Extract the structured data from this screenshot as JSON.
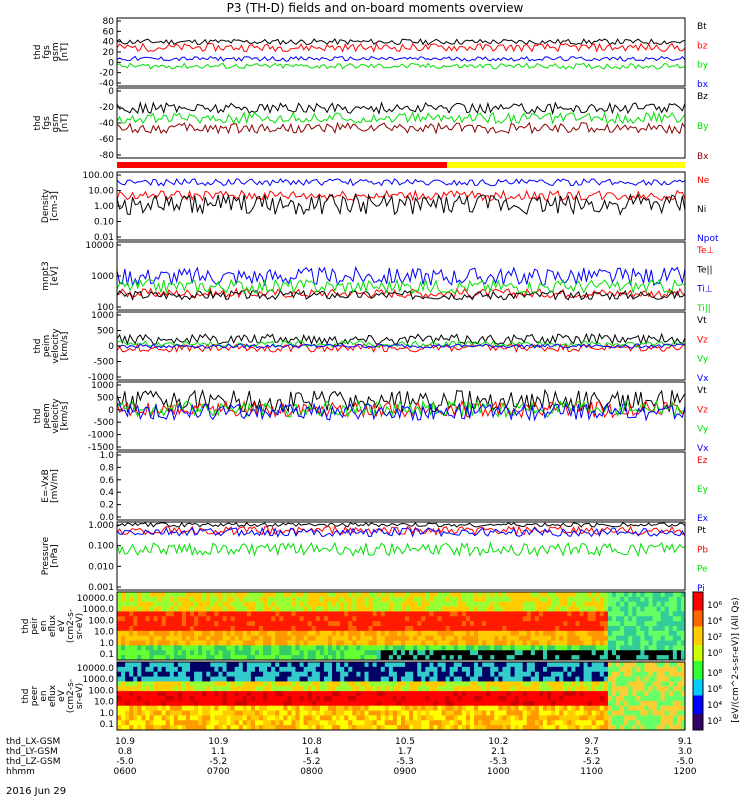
{
  "title": "P3 (TH-D) fields and on-board moments overview",
  "date_label": "2016 Jun 29",
  "colors": {
    "black": "#000000",
    "red": "#ff0000",
    "green": "#00e000",
    "blue": "#0000ff",
    "darkred": "#8b0000",
    "yellow": "#ffff00",
    "gray": "#888888"
  },
  "time_axis": {
    "range": [
      "0600",
      "1200"
    ],
    "rows": [
      {
        "label": "thd_LX-GSM",
        "values": [
          "10.9",
          "10.9",
          "10.8",
          "10.5",
          "10.2",
          "9.7",
          "9.1"
        ]
      },
      {
        "label": "thd_LY-GSM",
        "values": [
          "0.8",
          "1.1",
          "1.4",
          "1.7",
          "2.1",
          "2.5",
          "3.0"
        ]
      },
      {
        "label": "thd_LZ-GSM",
        "values": [
          "-5.0",
          "-5.2",
          "-5.2",
          "-5.3",
          "-5.3",
          "-5.2",
          "-5.0"
        ]
      },
      {
        "label": "hhmm",
        "values": [
          "0600",
          "0700",
          "0800",
          "0900",
          "1000",
          "1100",
          "1200"
        ]
      }
    ]
  },
  "chart_data": [
    {
      "id": "fgs-gsm",
      "type": "line",
      "ylabel": [
        "thd",
        "fgs",
        "gsm",
        "[nT]"
      ],
      "ylim": [
        -40,
        80
      ],
      "yticks": [
        "80",
        "60",
        "40",
        "20",
        "0",
        "-20",
        "-40"
      ],
      "series": [
        {
          "name": "Bt",
          "color": "black",
          "base": 38,
          "noise": 5
        },
        {
          "name": "bz",
          "color": "red",
          "base": 28,
          "noise": 7
        },
        {
          "name": "by",
          "color": "green",
          "base": -5,
          "noise": 5
        },
        {
          "name": "bx",
          "color": "blue",
          "base": 8,
          "noise": 4
        }
      ]
    },
    {
      "id": "fgs-gsm-2",
      "type": "line",
      "ylabel": [
        "thd",
        "fgs",
        "gsm",
        "[nT]"
      ],
      "ylim": [
        -90,
        15
      ],
      "yticks": [
        "0",
        "-20",
        "-40",
        "-60",
        "-80"
      ],
      "series": [
        {
          "name": "Bz",
          "color": "black",
          "base": -15,
          "noise": 8
        },
        {
          "name": "By",
          "color": "green",
          "base": -30,
          "noise": 8
        },
        {
          "name": "Bx",
          "color": "darkred",
          "base": -45,
          "noise": 8
        }
      ]
    },
    {
      "id": "density",
      "type": "line",
      "log": true,
      "ylabel": [
        "Density",
        "[cm-3]"
      ],
      "ylim": [
        0.01,
        100
      ],
      "yticks": [
        "100.00",
        "10.00",
        "1.00",
        "0.10",
        "0.01"
      ],
      "series": [
        {
          "name": "Ne",
          "color": "red",
          "base": 4,
          "noise": 0.3
        },
        {
          "name": "Ni",
          "color": "black",
          "base": 1.2,
          "noise": 0.6
        },
        {
          "name": "Npot",
          "color": "blue",
          "base": 25,
          "noise": 0.2
        }
      ]
    },
    {
      "id": "temperature",
      "type": "line",
      "log": true,
      "ylabel": [
        "mnpt3",
        "[eV]"
      ],
      "ylim": [
        10,
        10000
      ],
      "yticks": [
        "10000",
        "1000",
        "100"
      ],
      "series": [
        {
          "name": "Te⊥",
          "color": "red",
          "base": 55,
          "noise": 0.2
        },
        {
          "name": "Te||",
          "color": "black",
          "base": 45,
          "noise": 0.2
        },
        {
          "name": "Ti⊥",
          "color": "blue",
          "base": 300,
          "noise": 0.4
        },
        {
          "name": "Ti||",
          "color": "green",
          "base": 110,
          "noise": 0.3
        }
      ]
    },
    {
      "id": "peim-velocity",
      "type": "line",
      "ylabel": [
        "thd",
        "peim",
        "velocity",
        "[km/s]"
      ],
      "ylim": [
        -1000,
        1000
      ],
      "yticks": [
        "1000",
        "500",
        "0",
        "-500",
        "-1000"
      ],
      "series": [
        {
          "name": "Vt",
          "color": "black",
          "base": 200,
          "noise": 150
        },
        {
          "name": "Vz",
          "color": "red",
          "base": -60,
          "noise": 120
        },
        {
          "name": "Vy",
          "color": "green",
          "base": 60,
          "noise": 90
        },
        {
          "name": "Vx",
          "color": "blue",
          "base": 0,
          "noise": 60
        }
      ]
    },
    {
      "id": "peem-velocity",
      "type": "line",
      "ylabel": [
        "thd",
        "peem",
        "velocity",
        "[km/s]"
      ],
      "ylim": [
        -1500,
        1000
      ],
      "yticks": [
        "1000",
        "500",
        "0",
        "-500",
        "-1000",
        "-1500"
      ],
      "series": [
        {
          "name": "Vt",
          "color": "black",
          "base": 300,
          "noise": 400
        },
        {
          "name": "Vz",
          "color": "red",
          "base": 0,
          "noise": 300
        },
        {
          "name": "Vy",
          "color": "green",
          "base": 0,
          "noise": 300
        },
        {
          "name": "Vx",
          "color": "blue",
          "base": -100,
          "noise": 300
        }
      ]
    },
    {
      "id": "efield",
      "type": "line",
      "ylabel": [
        "E=-VxB",
        "[mV/m]"
      ],
      "ylim": [
        0,
        1
      ],
      "yticks": [
        "1.0",
        "0.8",
        "0.6",
        "0.4",
        "0.2",
        "0.0"
      ],
      "series": [
        {
          "name": "Ez",
          "color": "red"
        },
        {
          "name": "Ey",
          "color": "green"
        },
        {
          "name": "Ex",
          "color": "blue"
        }
      ]
    },
    {
      "id": "pressure",
      "type": "line",
      "log": true,
      "ylabel": [
        "Pressure",
        "[nPa]"
      ],
      "ylim": [
        0.001,
        1.5
      ],
      "yticks": [
        "1.000",
        "0.100",
        "0.010",
        "0.001"
      ],
      "series": [
        {
          "name": "Pt",
          "color": "black",
          "base": 1.1,
          "noise": 0.1
        },
        {
          "name": "Pb",
          "color": "red",
          "base": 0.6,
          "noise": 0.2
        },
        {
          "name": "Pe",
          "color": "green",
          "base": 0.08,
          "noise": 0.3
        },
        {
          "name": "Pi",
          "color": "blue",
          "base": 0.5,
          "noise": 0.2
        }
      ]
    },
    {
      "id": "peir-spectrogram",
      "type": "heatmap",
      "ylabel": [
        "thd",
        "peir",
        "en",
        "eflux",
        "eV",
        "(cm2-s-",
        "sr-eV)"
      ],
      "yticks": [
        "10000.0",
        "1000.0",
        "100.0",
        "10.0",
        "1.0",
        "0.1"
      ]
    },
    {
      "id": "peer-spectrogram",
      "type": "heatmap",
      "ylabel": [
        "thd",
        "peer",
        "en",
        "eflux",
        "eV",
        "(cm2-s-",
        "sr-eV)"
      ],
      "yticks": [
        "10000.0",
        "1000.0",
        "100.0",
        "10.0",
        "1.0",
        "0.1"
      ]
    }
  ],
  "colorbar": {
    "label": "[eV/(cm^2-s-sr-eV)] (All Qs)",
    "ticks_top": [
      "10⁶",
      "10⁴",
      "10²",
      "10⁰"
    ],
    "ticks_bottom": [
      "10⁸",
      "10⁶",
      "10⁴",
      "10²"
    ]
  }
}
